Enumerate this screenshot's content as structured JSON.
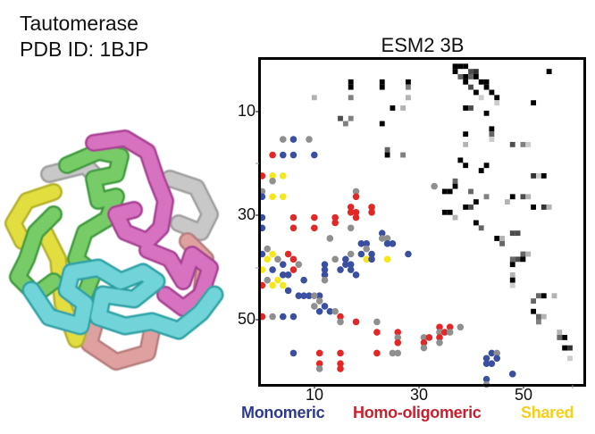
{
  "header": {
    "protein_name": "Tautomerase",
    "pdb_label": "PDB ID: 1BJP"
  },
  "structure_image": {
    "description": "Cartoon rendering of homo-hexameric tautomerase assembly, chains colored",
    "chain_colors": [
      "#5cbf5a",
      "#c85bb0",
      "#4fc4c8",
      "#d69a9a",
      "#d4cf3a",
      "#bdbdbd"
    ]
  },
  "chart_data": {
    "type": "heatmap",
    "title": "ESM2 3B",
    "xlabel": "",
    "ylabel": "",
    "n_residues": 62,
    "x_ticks": [
      10,
      30,
      50
    ],
    "y_ticks": [
      10,
      30,
      50
    ],
    "grid": false,
    "legend": [
      {
        "label": "Monomeric",
        "color": "#2e3a8c"
      },
      {
        "label": "Homo-oligomeric",
        "color": "#c8202e"
      },
      {
        "label": "Shared",
        "color": "#f5cf1c"
      }
    ],
    "upper_triangle": "ESM2 3B predicted contact map (grayscale, darker = higher probability)",
    "lower_triangle": "Structure contacts as colored dots",
    "heatmap_cells": [
      [
        2,
        38,
        1.0
      ],
      [
        2,
        39,
        1.0
      ],
      [
        2,
        40,
        1.0
      ],
      [
        3,
        38,
        1.0
      ],
      [
        3,
        41,
        0.7
      ],
      [
        3,
        42,
        0.8
      ],
      [
        3,
        56,
        1.0
      ],
      [
        4,
        39,
        0.6
      ],
      [
        4,
        40,
        1.0
      ],
      [
        4,
        41,
        0.6
      ],
      [
        4,
        42,
        1.0
      ],
      [
        5,
        40,
        1.0
      ],
      [
        5,
        43,
        1.0
      ],
      [
        5,
        44,
        1.0
      ],
      [
        6,
        41,
        0.7
      ],
      [
        6,
        44,
        1.0
      ],
      [
        7,
        42,
        1.0
      ],
      [
        7,
        45,
        1.0
      ],
      [
        8,
        43,
        0.2
      ],
      [
        8,
        46,
        1.0
      ],
      [
        5,
        18,
        1.0
      ],
      [
        5,
        24,
        1.0
      ],
      [
        5,
        29,
        1.0
      ],
      [
        6,
        18,
        1.0
      ],
      [
        6,
        24,
        1.0
      ],
      [
        6,
        29,
        0.5
      ],
      [
        8,
        18,
        0.5
      ],
      [
        8,
        29,
        0.3
      ],
      [
        8,
        11,
        0.3
      ],
      [
        10,
        26,
        1.0
      ],
      [
        10,
        28,
        0.3
      ],
      [
        9,
        46,
        0.2
      ],
      [
        9,
        53,
        1.0
      ],
      [
        10,
        40,
        1.0
      ],
      [
        10,
        41,
        0.7
      ],
      [
        11,
        44,
        1.0
      ],
      [
        12,
        16,
        0.7
      ],
      [
        12,
        18,
        0.5
      ],
      [
        13,
        17,
        0.5
      ],
      [
        13,
        24,
        1.0
      ],
      [
        14,
        45,
        1.0
      ],
      [
        15,
        40,
        1.0
      ],
      [
        15,
        45,
        0.6
      ],
      [
        16,
        45,
        0.2
      ],
      [
        17,
        40,
        0.3
      ],
      [
        17,
        49,
        0.7
      ],
      [
        17,
        51,
        0.5
      ],
      [
        17,
        52,
        0.2
      ],
      [
        18,
        25,
        0.6
      ],
      [
        19,
        25,
        1.0
      ],
      [
        19,
        28,
        0.5
      ],
      [
        20,
        39,
        1.0
      ],
      [
        21,
        40,
        1.0
      ],
      [
        21,
        44,
        1.0
      ],
      [
        22,
        43,
        1.0
      ],
      [
        23,
        53,
        0.8
      ],
      [
        23,
        54,
        0.2
      ],
      [
        23,
        55,
        1.0
      ],
      [
        24,
        38,
        0.6
      ],
      [
        25,
        38,
        1.0
      ],
      [
        26,
        36,
        1.0
      ],
      [
        26,
        37,
        1.0
      ],
      [
        26,
        41,
        0.6
      ],
      [
        27,
        44,
        0.5
      ],
      [
        27,
        49,
        1.0
      ],
      [
        27,
        51,
        0.7
      ],
      [
        27,
        52,
        0.3
      ],
      [
        28,
        42,
        1.0
      ],
      [
        28,
        48,
        0.3
      ],
      [
        29,
        40,
        1.0
      ],
      [
        29,
        41,
        0.7
      ],
      [
        29,
        53,
        1.0
      ],
      [
        29,
        55,
        0.8
      ],
      [
        29,
        56,
        0.3
      ],
      [
        30,
        36,
        1.0
      ],
      [
        30,
        37,
        1.0
      ],
      [
        31,
        38,
        0.3
      ],
      [
        32,
        42,
        1.0
      ],
      [
        33,
        43,
        0.6
      ],
      [
        34,
        49,
        0.7
      ],
      [
        34,
        50,
        0.7
      ],
      [
        35,
        46,
        1.0
      ],
      [
        35,
        47,
        0.3
      ],
      [
        36,
        47,
        0.6
      ],
      [
        38,
        51,
        0.6
      ],
      [
        38,
        52,
        0.3
      ],
      [
        39,
        49,
        0.6
      ],
      [
        39,
        50,
        0.7
      ],
      [
        39,
        51,
        1.0
      ],
      [
        40,
        49,
        1.0
      ],
      [
        42,
        49,
        0.3
      ],
      [
        43,
        49,
        1.0
      ],
      [
        44,
        49,
        0.2
      ],
      [
        46,
        54,
        0.6
      ],
      [
        46,
        55,
        1.0
      ],
      [
        46,
        57,
        0.3
      ],
      [
        47,
        53,
        0.6
      ],
      [
        49,
        53,
        1.0
      ],
      [
        50,
        54,
        0.6
      ],
      [
        50,
        55,
        0.3
      ],
      [
        51,
        54,
        0.5
      ],
      [
        53,
        58,
        0.3
      ],
      [
        54,
        58,
        0.6
      ],
      [
        54,
        59,
        1.0
      ],
      [
        56,
        59,
        1.0
      ],
      [
        56,
        60,
        0.8
      ],
      [
        58,
        60,
        0.2
      ]
    ],
    "contact_dots": [
      {
        "x": 5,
        "y": 16,
        "cat": "other"
      },
      {
        "x": 7,
        "y": 16,
        "cat": "monomeric"
      },
      {
        "x": 10,
        "y": 16,
        "cat": "other"
      },
      {
        "x": 3,
        "y": 19,
        "cat": "homo"
      },
      {
        "x": 5,
        "y": 19,
        "cat": "monomeric"
      },
      {
        "x": 7,
        "y": 19,
        "cat": "monomeric"
      },
      {
        "x": 11,
        "y": 19,
        "cat": "monomeric"
      },
      {
        "x": 1,
        "y": 23,
        "cat": "homo"
      },
      {
        "x": 3,
        "y": 23,
        "cat": "shared"
      },
      {
        "x": 5,
        "y": 23,
        "cat": "shared"
      },
      {
        "x": 3,
        "y": 24,
        "cat": "other"
      },
      {
        "x": 1,
        "y": 26,
        "cat": "other"
      },
      {
        "x": 1,
        "y": 27,
        "cat": "monomeric"
      },
      {
        "x": 3,
        "y": 27,
        "cat": "shared"
      },
      {
        "x": 5,
        "y": 27,
        "cat": "shared"
      },
      {
        "x": 19,
        "y": 26,
        "cat": "other"
      },
      {
        "x": 19,
        "y": 27,
        "cat": "homo"
      },
      {
        "x": 1,
        "y": 31,
        "cat": "monomeric"
      },
      {
        "x": 1,
        "y": 33,
        "cat": "monomeric"
      },
      {
        "x": 7,
        "y": 31,
        "cat": "homo"
      },
      {
        "x": 7,
        "y": 33,
        "cat": "homo"
      },
      {
        "x": 11,
        "y": 31,
        "cat": "homo"
      },
      {
        "x": 11,
        "y": 33,
        "cat": "homo"
      },
      {
        "x": 15,
        "y": 31,
        "cat": "homo"
      },
      {
        "x": 15,
        "y": 32,
        "cat": "homo"
      },
      {
        "x": 18,
        "y": 29,
        "cat": "homo"
      },
      {
        "x": 18,
        "y": 30,
        "cat": "homo"
      },
      {
        "x": 19,
        "y": 30,
        "cat": "homo"
      },
      {
        "x": 19,
        "y": 31,
        "cat": "homo"
      },
      {
        "x": 22,
        "y": 29,
        "cat": "homo"
      },
      {
        "x": 22,
        "y": 30,
        "cat": "homo"
      },
      {
        "x": 18,
        "y": 33,
        "cat": "other"
      },
      {
        "x": 14,
        "y": 35,
        "cat": "other"
      },
      {
        "x": 20,
        "y": 36,
        "cat": "monomeric"
      },
      {
        "x": 21,
        "y": 36,
        "cat": "monomeric"
      },
      {
        "x": 21,
        "y": 37,
        "cat": "other"
      },
      {
        "x": 24,
        "y": 34,
        "cat": "monomeric"
      },
      {
        "x": 24,
        "y": 35,
        "cat": "other"
      },
      {
        "x": 25,
        "y": 35,
        "cat": "other"
      },
      {
        "x": 25,
        "y": 36,
        "cat": "monomeric"
      },
      {
        "x": 26,
        "y": 36,
        "cat": "monomeric"
      },
      {
        "x": 20,
        "y": 38,
        "cat": "monomeric"
      },
      {
        "x": 18,
        "y": 38,
        "cat": "other"
      },
      {
        "x": 17,
        "y": 39,
        "cat": "monomeric"
      },
      {
        "x": 17,
        "y": 40,
        "cat": "monomeric"
      },
      {
        "x": 18,
        "y": 40,
        "cat": "monomeric"
      },
      {
        "x": 22,
        "y": 38,
        "cat": "monomeric"
      },
      {
        "x": 21,
        "y": 39,
        "cat": "shared"
      },
      {
        "x": 22,
        "y": 39,
        "cat": "monomeric"
      },
      {
        "x": 25,
        "y": 39,
        "cat": "shared"
      },
      {
        "x": 29,
        "y": 38,
        "cat": "monomeric"
      },
      {
        "x": 15,
        "y": 39,
        "cat": "other"
      },
      {
        "x": 13,
        "y": 40,
        "cat": "monomeric"
      },
      {
        "x": 13,
        "y": 41,
        "cat": "monomeric"
      },
      {
        "x": 13,
        "y": 42,
        "cat": "monomeric"
      },
      {
        "x": 13,
        "y": 43,
        "cat": "other"
      },
      {
        "x": 16,
        "y": 41,
        "cat": "monomeric"
      },
      {
        "x": 18,
        "y": 41,
        "cat": "monomeric"
      },
      {
        "x": 19,
        "y": 42,
        "cat": "monomeric"
      },
      {
        "x": 2,
        "y": 37,
        "cat": "other"
      },
      {
        "x": 1,
        "y": 38,
        "cat": "monomeric"
      },
      {
        "x": 2,
        "y": 39,
        "cat": "shared"
      },
      {
        "x": 3,
        "y": 38,
        "cat": "shared"
      },
      {
        "x": 4,
        "y": 39,
        "cat": "other"
      },
      {
        "x": 5,
        "y": 40,
        "cat": "monomeric"
      },
      {
        "x": 6,
        "y": 38,
        "cat": "homo"
      },
      {
        "x": 7,
        "y": 39,
        "cat": "homo"
      },
      {
        "x": 1,
        "y": 41,
        "cat": "shared"
      },
      {
        "x": 3,
        "y": 41,
        "cat": "monomeric"
      },
      {
        "x": 5,
        "y": 42,
        "cat": "monomeric"
      },
      {
        "x": 7,
        "y": 41,
        "cat": "homo"
      },
      {
        "x": 2,
        "y": 43,
        "cat": "other"
      },
      {
        "x": 4,
        "y": 43,
        "cat": "shared"
      },
      {
        "x": 6,
        "y": 42,
        "cat": "monomeric"
      },
      {
        "x": 8,
        "y": 40,
        "cat": "other"
      },
      {
        "x": 9,
        "y": 43,
        "cat": "monomeric"
      },
      {
        "x": 1,
        "y": 44,
        "cat": "homo"
      },
      {
        "x": 3,
        "y": 44,
        "cat": "shared"
      },
      {
        "x": 5,
        "y": 44,
        "cat": "shared"
      },
      {
        "x": 6,
        "y": 45,
        "cat": "monomeric"
      },
      {
        "x": 8,
        "y": 46,
        "cat": "monomeric"
      },
      {
        "x": 9,
        "y": 46,
        "cat": "monomeric"
      },
      {
        "x": 10,
        "y": 46,
        "cat": "monomeric"
      },
      {
        "x": 12,
        "y": 46,
        "cat": "monomeric"
      },
      {
        "x": 11,
        "y": 46,
        "cat": "other"
      },
      {
        "x": 12,
        "y": 47,
        "cat": "other"
      },
      {
        "x": 11,
        "y": 48,
        "cat": "other"
      },
      {
        "x": 12,
        "y": 49,
        "cat": "monomeric"
      },
      {
        "x": 13,
        "y": 48,
        "cat": "monomeric"
      },
      {
        "x": 14,
        "y": 49,
        "cat": "monomeric"
      },
      {
        "x": 15,
        "y": 49,
        "cat": "other"
      },
      {
        "x": 16,
        "y": 50,
        "cat": "homo"
      },
      {
        "x": 16,
        "y": 51,
        "cat": "other"
      },
      {
        "x": 19,
        "y": 51,
        "cat": "homo"
      },
      {
        "x": 1,
        "y": 50,
        "cat": "homo"
      },
      {
        "x": 3,
        "y": 50,
        "cat": "other"
      },
      {
        "x": 5,
        "y": 50,
        "cat": "monomeric"
      },
      {
        "x": 7,
        "y": 50,
        "cat": "monomeric"
      },
      {
        "x": 23,
        "y": 51,
        "cat": "other"
      },
      {
        "x": 23,
        "y": 53,
        "cat": "homo"
      },
      {
        "x": 27,
        "y": 53,
        "cat": "homo"
      },
      {
        "x": 27,
        "y": 54,
        "cat": "other"
      },
      {
        "x": 27,
        "y": 55,
        "cat": "homo"
      },
      {
        "x": 26,
        "y": 57,
        "cat": "other"
      },
      {
        "x": 23,
        "y": 57,
        "cat": "homo"
      },
      {
        "x": 27,
        "y": 57,
        "cat": "other"
      },
      {
        "x": 7,
        "y": 57,
        "cat": "monomeric"
      },
      {
        "x": 12,
        "y": 57,
        "cat": "homo"
      },
      {
        "x": 12,
        "y": 59,
        "cat": "homo"
      },
      {
        "x": 12,
        "y": 60,
        "cat": "other"
      },
      {
        "x": 16,
        "y": 57,
        "cat": "homo"
      },
      {
        "x": 16,
        "y": 59,
        "cat": "homo"
      },
      {
        "x": 16,
        "y": 60,
        "cat": "homo"
      },
      {
        "x": 35,
        "y": 52,
        "cat": "homo"
      },
      {
        "x": 37,
        "y": 52,
        "cat": "homo"
      },
      {
        "x": 35,
        "y": 53,
        "cat": "other"
      },
      {
        "x": 36,
        "y": 53,
        "cat": "homo"
      },
      {
        "x": 37,
        "y": 53,
        "cat": "other"
      },
      {
        "x": 39,
        "y": 52,
        "cat": "other"
      },
      {
        "x": 32,
        "y": 54,
        "cat": "other"
      },
      {
        "x": 33,
        "y": 54,
        "cat": "homo"
      },
      {
        "x": 35,
        "y": 54,
        "cat": "homo"
      },
      {
        "x": 32,
        "y": 55,
        "cat": "homo"
      },
      {
        "x": 35,
        "y": 55,
        "cat": "other"
      },
      {
        "x": 32,
        "y": 56,
        "cat": "other"
      },
      {
        "x": 45,
        "y": 57,
        "cat": "monomeric"
      },
      {
        "x": 46,
        "y": 57,
        "cat": "other"
      },
      {
        "x": 44,
        "y": 58,
        "cat": "monomeric"
      },
      {
        "x": 44,
        "y": 59,
        "cat": "monomeric"
      },
      {
        "x": 45,
        "y": 59,
        "cat": "monomeric"
      },
      {
        "x": 46,
        "y": 58,
        "cat": "monomeric"
      },
      {
        "x": 49,
        "y": 61,
        "cat": "monomeric"
      },
      {
        "x": 44,
        "y": 62,
        "cat": "monomeric"
      },
      {
        "x": 44,
        "y": 63,
        "cat": "other"
      },
      {
        "x": 34,
        "y": 25,
        "cat": "other"
      }
    ],
    "dot_colors": {
      "monomeric": "#3a4fa0",
      "homo": "#e32626",
      "shared": "#f6e61c",
      "other": "#8f8f8f"
    }
  },
  "legend": {
    "monomeric": "Monomeric",
    "homo": "Homo-oligomeric",
    "shared": "Shared"
  },
  "axes": {
    "y_ticks": [
      "10",
      "30",
      "50"
    ],
    "x_ticks": [
      "10",
      "30",
      "50"
    ]
  },
  "colors": {
    "monomeric_text": "#2e3a8c",
    "homo_text": "#c8202e",
    "shared_text": "#f5cf1c"
  }
}
